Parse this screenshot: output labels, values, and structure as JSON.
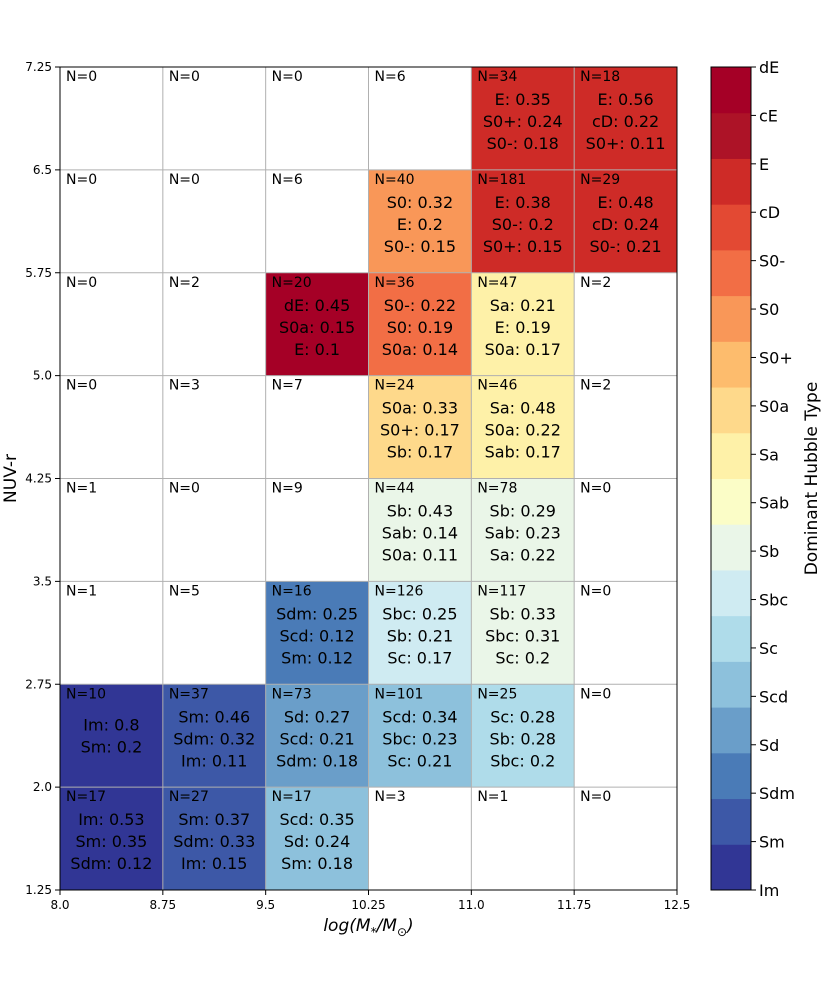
{
  "chart_data": {
    "type": "heatmap",
    "xlabel": "log(M*/M⊙)",
    "ylabel": "NUV-r",
    "colorbar_label": "Dominant Hubble Type",
    "x_edges": [
      8.0,
      8.75,
      9.5,
      10.25,
      11.0,
      11.75,
      12.5
    ],
    "y_edges": [
      1.25,
      2.0,
      2.75,
      3.5,
      4.25,
      5.0,
      5.75,
      6.5,
      7.25
    ],
    "x_tick_labels": [
      "8.0",
      "8.75",
      "9.5",
      "10.25",
      "11.0",
      "11.75",
      "12.5"
    ],
    "y_tick_labels": [
      "1.25",
      "2.0",
      "2.75",
      "3.5",
      "4.25",
      "5.0",
      "5.75",
      "6.5",
      "7.25"
    ],
    "hubble_types": [
      "Im",
      "Sm",
      "Sdm",
      "Sd",
      "Scd",
      "Sc",
      "Sbc",
      "Sb",
      "Sab",
      "Sa",
      "S0a",
      "S0+",
      "S0",
      "S0-",
      "cD",
      "E",
      "cE",
      "dE"
    ],
    "colors": [
      "#313695",
      "#3d58a7",
      "#4a7bb7",
      "#6a9ec9",
      "#8dc1dc",
      "#afdcea",
      "#cfebf2",
      "#eaf6e8",
      "#fbfdc7",
      "#fef1a8",
      "#fed98b",
      "#fdbc6d",
      "#f99758",
      "#f26e45",
      "#e34933",
      "#ce2b27",
      "#ad1327",
      "#a50026"
    ],
    "grid": true,
    "cells": [
      {
        "col": 0,
        "row": 7,
        "n": "N=0",
        "lines": []
      },
      {
        "col": 1,
        "row": 7,
        "n": "N=0",
        "lines": []
      },
      {
        "col": 2,
        "row": 7,
        "n": "N=0",
        "lines": []
      },
      {
        "col": 3,
        "row": 7,
        "n": "N=6",
        "lines": []
      },
      {
        "col": 4,
        "row": 7,
        "n": "N=34",
        "type": "E",
        "lines": [
          "E: 0.35",
          "S0+: 0.24",
          "S0-: 0.18"
        ]
      },
      {
        "col": 5,
        "row": 7,
        "n": "N=18",
        "type": "E",
        "lines": [
          "E: 0.56",
          "cD: 0.22",
          "S0+: 0.11"
        ]
      },
      {
        "col": 0,
        "row": 6,
        "n": "N=0",
        "lines": []
      },
      {
        "col": 1,
        "row": 6,
        "n": "N=0",
        "lines": []
      },
      {
        "col": 2,
        "row": 6,
        "n": "N=6",
        "lines": []
      },
      {
        "col": 3,
        "row": 6,
        "n": "N=40",
        "type": "S0",
        "lines": [
          "S0: 0.32",
          "E: 0.2",
          "S0-: 0.15"
        ]
      },
      {
        "col": 4,
        "row": 6,
        "n": "N=181",
        "type": "E",
        "lines": [
          "E: 0.38",
          "S0-: 0.2",
          "S0+: 0.15"
        ]
      },
      {
        "col": 5,
        "row": 6,
        "n": "N=29",
        "type": "E",
        "lines": [
          "E: 0.48",
          "cD: 0.24",
          "S0-: 0.21"
        ]
      },
      {
        "col": 0,
        "row": 5,
        "n": "N=0",
        "lines": []
      },
      {
        "col": 1,
        "row": 5,
        "n": "N=2",
        "lines": []
      },
      {
        "col": 2,
        "row": 5,
        "n": "N=20",
        "type": "dE",
        "lines": [
          "dE: 0.45",
          "S0a: 0.15",
          "E: 0.1"
        ]
      },
      {
        "col": 3,
        "row": 5,
        "n": "N=36",
        "type": "S0-",
        "lines": [
          "S0-: 0.22",
          "S0: 0.19",
          "S0a: 0.14"
        ]
      },
      {
        "col": 4,
        "row": 5,
        "n": "N=47",
        "type": "Sa",
        "lines": [
          "Sa: 0.21",
          "E: 0.19",
          "S0a: 0.17"
        ]
      },
      {
        "col": 5,
        "row": 5,
        "n": "N=2",
        "lines": []
      },
      {
        "col": 0,
        "row": 4,
        "n": "N=0",
        "lines": []
      },
      {
        "col": 1,
        "row": 4,
        "n": "N=3",
        "lines": []
      },
      {
        "col": 2,
        "row": 4,
        "n": "N=7",
        "lines": []
      },
      {
        "col": 3,
        "row": 4,
        "n": "N=24",
        "type": "S0a",
        "lines": [
          "S0a: 0.33",
          "S0+: 0.17",
          "Sb: 0.17"
        ]
      },
      {
        "col": 4,
        "row": 4,
        "n": "N=46",
        "type": "Sa",
        "lines": [
          "Sa: 0.48",
          "S0a: 0.22",
          "Sab: 0.17"
        ]
      },
      {
        "col": 5,
        "row": 4,
        "n": "N=2",
        "lines": []
      },
      {
        "col": 0,
        "row": 3,
        "n": "N=1",
        "lines": []
      },
      {
        "col": 1,
        "row": 3,
        "n": "N=0",
        "lines": []
      },
      {
        "col": 2,
        "row": 3,
        "n": "N=9",
        "lines": []
      },
      {
        "col": 3,
        "row": 3,
        "n": "N=44",
        "type": "Sb",
        "lines": [
          "Sb: 0.43",
          "Sab: 0.14",
          "S0a: 0.11"
        ]
      },
      {
        "col": 4,
        "row": 3,
        "n": "N=78",
        "type": "Sb",
        "lines": [
          "Sb: 0.29",
          "Sab: 0.23",
          "Sa: 0.22"
        ]
      },
      {
        "col": 5,
        "row": 3,
        "n": "N=0",
        "lines": []
      },
      {
        "col": 0,
        "row": 2,
        "n": "N=1",
        "lines": []
      },
      {
        "col": 1,
        "row": 2,
        "n": "N=5",
        "lines": []
      },
      {
        "col": 2,
        "row": 2,
        "n": "N=16",
        "type": "Sdm",
        "lines": [
          "Sdm: 0.25",
          "Scd: 0.12",
          "Sm: 0.12"
        ]
      },
      {
        "col": 3,
        "row": 2,
        "n": "N=126",
        "type": "Sbc",
        "lines": [
          "Sbc: 0.25",
          "Sb: 0.21",
          "Sc: 0.17"
        ]
      },
      {
        "col": 4,
        "row": 2,
        "n": "N=117",
        "type": "Sb",
        "lines": [
          "Sb: 0.33",
          "Sbc: 0.31",
          "Sc: 0.2"
        ]
      },
      {
        "col": 5,
        "row": 2,
        "n": "N=0",
        "lines": []
      },
      {
        "col": 0,
        "row": 1,
        "n": "N=10",
        "type": "Im",
        "lines": [
          "Im: 0.8",
          "Sm: 0.2"
        ]
      },
      {
        "col": 1,
        "row": 1,
        "n": "N=37",
        "type": "Sm",
        "lines": [
          "Sm: 0.46",
          "Sdm: 0.32",
          "Im: 0.11"
        ]
      },
      {
        "col": 2,
        "row": 1,
        "n": "N=73",
        "type": "Sd",
        "lines": [
          "Sd: 0.27",
          "Scd: 0.21",
          "Sdm: 0.18"
        ]
      },
      {
        "col": 3,
        "row": 1,
        "n": "N=101",
        "type": "Scd",
        "lines": [
          "Scd: 0.34",
          "Sbc: 0.23",
          "Sc: 0.21"
        ]
      },
      {
        "col": 4,
        "row": 1,
        "n": "N=25",
        "type": "Sc",
        "lines": [
          "Sc: 0.28",
          "Sb: 0.28",
          "Sbc: 0.2"
        ]
      },
      {
        "col": 5,
        "row": 1,
        "n": "N=0",
        "lines": []
      },
      {
        "col": 0,
        "row": 0,
        "n": "N=17",
        "type": "Im",
        "lines": [
          "Im: 0.53",
          "Sm: 0.35",
          "Sdm: 0.12"
        ]
      },
      {
        "col": 1,
        "row": 0,
        "n": "N=27",
        "type": "Sm",
        "lines": [
          "Sm: 0.37",
          "Sdm: 0.33",
          "Im: 0.15"
        ]
      },
      {
        "col": 2,
        "row": 0,
        "n": "N=17",
        "type": "Scd",
        "lines": [
          "Scd: 0.35",
          "Sd: 0.24",
          "Sm: 0.18"
        ]
      },
      {
        "col": 3,
        "row": 0,
        "n": "N=3",
        "lines": []
      },
      {
        "col": 4,
        "row": 0,
        "n": "N=1",
        "lines": []
      },
      {
        "col": 5,
        "row": 0,
        "n": "N=0",
        "lines": []
      }
    ]
  }
}
